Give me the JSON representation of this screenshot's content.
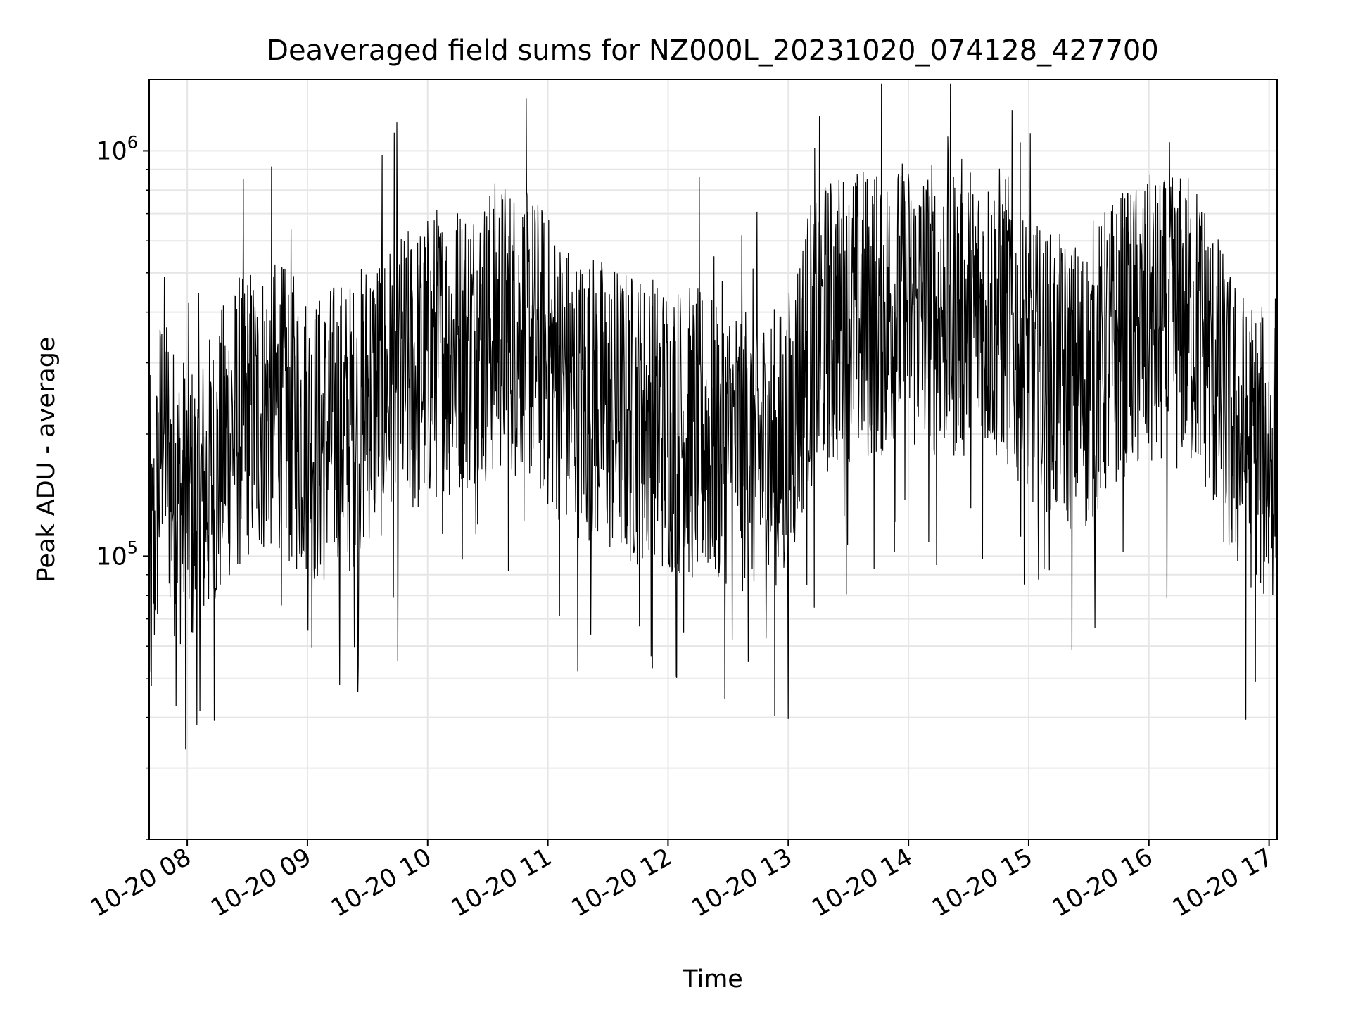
{
  "chart_data": {
    "type": "line",
    "title": "Deaveraged field sums for NZ000L_20231020_074128_427700",
    "xlabel": "Time",
    "ylabel": "Peak ADU - average",
    "xscale": "time",
    "yscale": "log",
    "xlim": [
      "2023-10-20 07:41",
      "2023-10-20 17:04"
    ],
    "ylim": [
      20000,
      1500000
    ],
    "grid": true,
    "line_color": "#000000",
    "grid_color": "#e6e6e6",
    "x_ticks": [
      {
        "value": "2023-10-20 08:00",
        "label": "10-20 08"
      },
      {
        "value": "2023-10-20 09:00",
        "label": "10-20 09"
      },
      {
        "value": "2023-10-20 10:00",
        "label": "10-20 10"
      },
      {
        "value": "2023-10-20 11:00",
        "label": "10-20 11"
      },
      {
        "value": "2023-10-20 12:00",
        "label": "10-20 12"
      },
      {
        "value": "2023-10-20 13:00",
        "label": "10-20 13"
      },
      {
        "value": "2023-10-20 14:00",
        "label": "10-20 14"
      },
      {
        "value": "2023-10-20 15:00",
        "label": "10-20 15"
      },
      {
        "value": "2023-10-20 16:00",
        "label": "10-20 16"
      },
      {
        "value": "2023-10-20 17:00",
        "label": "10-20 17"
      }
    ],
    "y_ticks": [
      {
        "value": 100000,
        "base": "10",
        "exp": "5"
      },
      {
        "value": 1000000,
        "base": "10",
        "exp": "6"
      }
    ],
    "series": [
      {
        "x": [
          "2023-10-20 07:41",
          "2023-10-20 07:48",
          "2023-10-20 07:52",
          "2023-10-20 07:55",
          "2023-10-20 08:00",
          "2023-10-20 08:05",
          "2023-10-20 08:10",
          "2023-10-20 08:15",
          "2023-10-20 08:20",
          "2023-10-20 08:25",
          "2023-10-20 08:30",
          "2023-10-20 08:35",
          "2023-10-20 08:40",
          "2023-10-20 08:45",
          "2023-10-20 08:50",
          "2023-10-20 08:55",
          "2023-10-20 09:00",
          "2023-10-20 09:05",
          "2023-10-20 09:10",
          "2023-10-20 09:15",
          "2023-10-20 09:20",
          "2023-10-20 09:25",
          "2023-10-20 09:30",
          "2023-10-20 09:35",
          "2023-10-20 09:40",
          "2023-10-20 09:45",
          "2023-10-20 09:50",
          "2023-10-20 09:55",
          "2023-10-20 10:00",
          "2023-10-20 10:05",
          "2023-10-20 10:10",
          "2023-10-20 10:15",
          "2023-10-20 10:20",
          "2023-10-20 10:25",
          "2023-10-20 10:30",
          "2023-10-20 10:35",
          "2023-10-20 10:40",
          "2023-10-20 10:45",
          "2023-10-20 10:50",
          "2023-10-20 10:55",
          "2023-10-20 11:00",
          "2023-10-20 11:05",
          "2023-10-20 11:10",
          "2023-10-20 11:15",
          "2023-10-20 11:20",
          "2023-10-20 11:25",
          "2023-10-20 11:30",
          "2023-10-20 11:35",
          "2023-10-20 11:40",
          "2023-10-20 11:45",
          "2023-10-20 11:50",
          "2023-10-20 11:55",
          "2023-10-20 12:00",
          "2023-10-20 12:05",
          "2023-10-20 12:10",
          "2023-10-20 12:15",
          "2023-10-20 12:20",
          "2023-10-20 12:25",
          "2023-10-20 12:30",
          "2023-10-20 12:35",
          "2023-10-20 12:40",
          "2023-10-20 12:45",
          "2023-10-20 12:50",
          "2023-10-20 12:55",
          "2023-10-20 13:00",
          "2023-10-20 13:05",
          "2023-10-20 13:10",
          "2023-10-20 13:15",
          "2023-10-20 13:20",
          "2023-10-20 13:25",
          "2023-10-20 13:30",
          "2023-10-20 13:35",
          "2023-10-20 13:40",
          "2023-10-20 13:45",
          "2023-10-20 13:50",
          "2023-10-20 13:55",
          "2023-10-20 14:00",
          "2023-10-20 14:05",
          "2023-10-20 14:10",
          "2023-10-20 14:15",
          "2023-10-20 14:20",
          "2023-10-20 14:25",
          "2023-10-20 14:30",
          "2023-10-20 14:35",
          "2023-10-20 14:40",
          "2023-10-20 14:45",
          "2023-10-20 14:50",
          "2023-10-20 14:55",
          "2023-10-20 15:00",
          "2023-10-20 15:05",
          "2023-10-20 15:10",
          "2023-10-20 15:15",
          "2023-10-20 15:20",
          "2023-10-20 15:25",
          "2023-10-20 15:30",
          "2023-10-20 15:35",
          "2023-10-20 15:40",
          "2023-10-20 15:45",
          "2023-10-20 15:50",
          "2023-10-20 15:55",
          "2023-10-20 16:00",
          "2023-10-20 16:05",
          "2023-10-20 16:10",
          "2023-10-20 16:15",
          "2023-10-20 16:20",
          "2023-10-20 16:25",
          "2023-10-20 16:30",
          "2023-10-20 16:35",
          "2023-10-20 16:40",
          "2023-10-20 16:45",
          "2023-10-20 16:50",
          "2023-10-20 16:55",
          "2023-10-20 17:00",
          "2023-10-20 17:04"
        ],
        "y": [
          70000,
          230000,
          150000,
          140000,
          135000,
          130000,
          150000,
          160000,
          200000,
          210000,
          230000,
          220000,
          240000,
          230000,
          220000,
          210000,
          200000,
          190000,
          200000,
          210000,
          205000,
          210000,
          250000,
          255000,
          260000,
          270000,
          275000,
          285000,
          300000,
          320000,
          320000,
          330000,
          335000,
          340000,
          350000,
          370000,
          365000,
          360000,
          350000,
          330000,
          300000,
          280000,
          260000,
          250000,
          245000,
          240000,
          230000,
          225000,
          220000,
          218000,
          215000,
          212000,
          210000,
          205000,
          200000,
          198000,
          195000,
          190000,
          190000,
          188000,
          185000,
          180000,
          178000,
          175000,
          190000,
          260000,
          320000,
          350000,
          370000,
          380000,
          385000,
          390000,
          395000,
          400000,
          405000,
          405000,
          410000,
          410000,
          408000,
          405000,
          402000,
          400000,
          400000,
          398000,
          396000,
          395000,
          380000,
          330000,
          300000,
          280000,
          270000,
          265000,
          262000,
          260000,
          270000,
          290000,
          320000,
          340000,
          350000,
          355000,
          360000,
          365000,
          370000,
          375000,
          380000,
          360000,
          320000,
          260000,
          220000,
          200000,
          190000,
          180000,
          170000,
          200000
        ]
      }
    ]
  }
}
